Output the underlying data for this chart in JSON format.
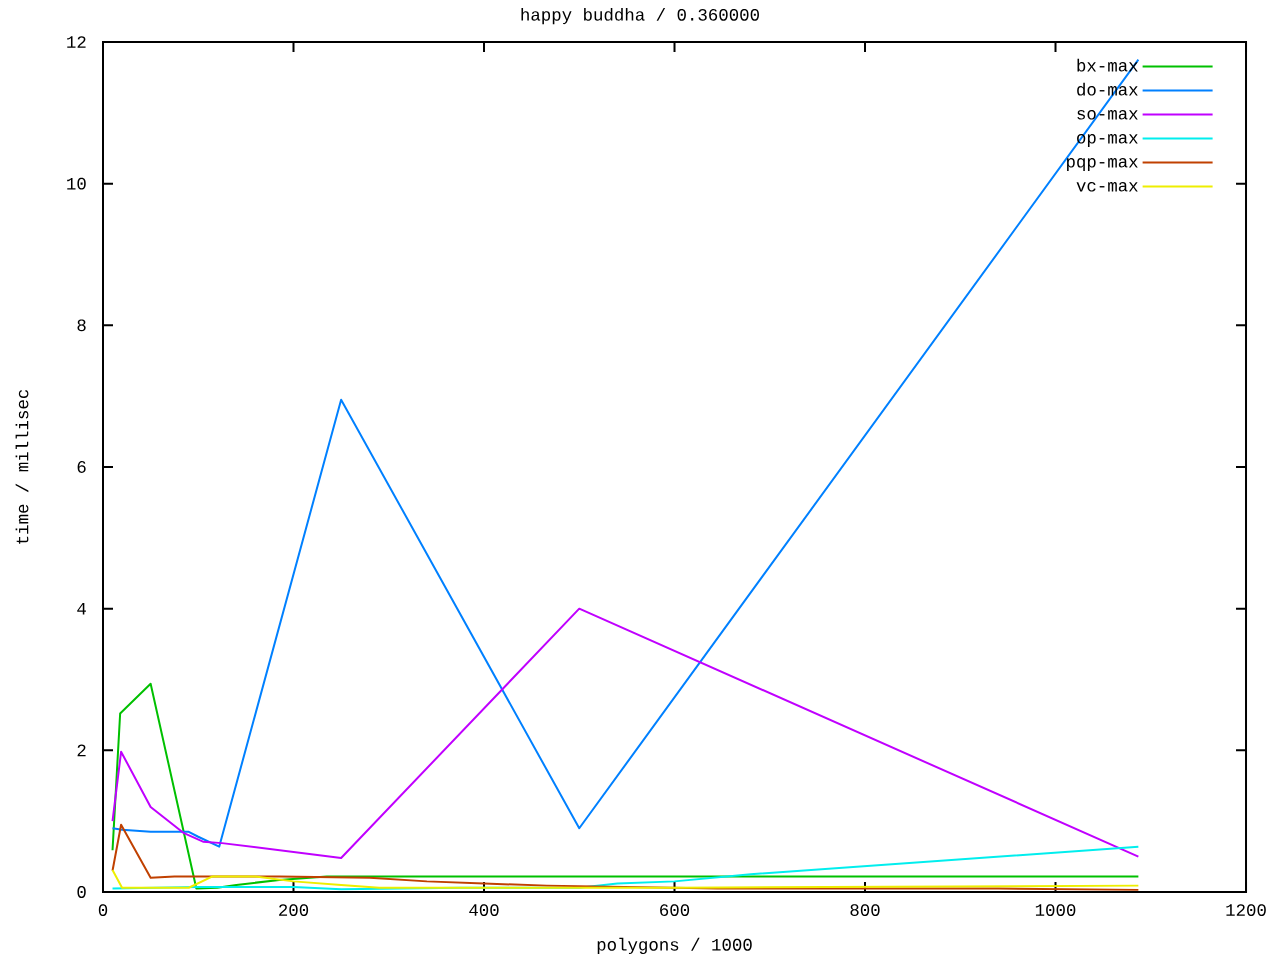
{
  "chart_data": {
    "type": "line",
    "title": "happy buddha / 0.360000",
    "xlabel": "polygons / 1000",
    "ylabel": "time / millisec",
    "xlim": [
      0,
      1200
    ],
    "ylim": [
      0,
      12
    ],
    "xticks": [
      0,
      200,
      400,
      600,
      800,
      1000,
      1200
    ],
    "yticks": [
      0,
      2,
      4,
      6,
      8,
      10,
      12
    ],
    "legend": "top right",
    "series": [
      {
        "name": "bx-max",
        "color": "#00c000",
        "x": [
          10,
          18,
          50,
          98,
          120,
          140,
          185,
          235,
          1087
        ],
        "values": [
          0.59,
          2.52,
          2.94,
          0.05,
          0.06,
          0.1,
          0.17,
          0.22,
          0.22
        ]
      },
      {
        "name": "do-max",
        "color": "#0080ff",
        "x": [
          10,
          20,
          50,
          90,
          100,
          122,
          250,
          500,
          1087
        ],
        "values": [
          0.9,
          0.88,
          0.85,
          0.85,
          0.78,
          0.64,
          6.95,
          0.9,
          11.75
        ]
      },
      {
        "name": "so-max",
        "color": "#c000ff",
        "x": [
          10,
          19,
          50,
          85,
          105,
          125,
          250,
          500,
          1087
        ],
        "values": [
          1.0,
          1.98,
          1.2,
          0.83,
          0.71,
          0.69,
          0.48,
          4.0,
          0.5
        ]
      },
      {
        "name": "op-max",
        "color": "#00eeee",
        "x": [
          10,
          100,
          200,
          250,
          375,
          500,
          540,
          600,
          680,
          1087
        ],
        "values": [
          0.05,
          0.07,
          0.07,
          0.04,
          0.06,
          0.06,
          0.12,
          0.15,
          0.25,
          0.64
        ]
      },
      {
        "name": "pqp-max",
        "color": "#c04000",
        "x": [
          10,
          19,
          50,
          75,
          185,
          280,
          340,
          400,
          466,
          645,
          940,
          1087
        ],
        "values": [
          0.3,
          0.95,
          0.2,
          0.22,
          0.22,
          0.2,
          0.15,
          0.12,
          0.09,
          0.05,
          0.05,
          0.03
        ]
      },
      {
        "name": "vc-max",
        "color": "#eeee00",
        "x": [
          10,
          20,
          90,
          115,
          160,
          200,
          250,
          290,
          600,
          1087
        ],
        "values": [
          0.31,
          0.06,
          0.06,
          0.22,
          0.22,
          0.15,
          0.1,
          0.06,
          0.06,
          0.09
        ]
      }
    ]
  }
}
